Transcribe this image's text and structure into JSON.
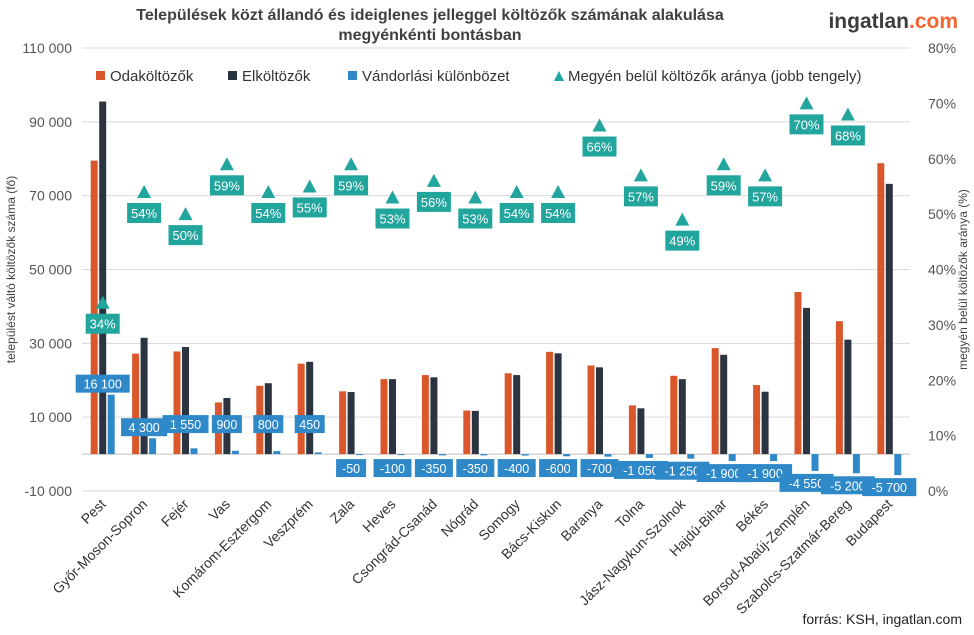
{
  "header": {
    "title_line1": "Települések közt állandó és ideiglenes jelleggel költözők számának alakulása",
    "title_line2": "megyénkénti bontásban",
    "brand_main": "ingatlan",
    "brand_suffix": ".com"
  },
  "footer": {
    "source": "forrás: KSH, ingatlan.com"
  },
  "colors": {
    "odakoltozok": "#d9572b",
    "elkoltozok": "#2c3441",
    "vandorlasi": "#2f89c9",
    "arany": "#22a59d",
    "grid": "#d9d9d9",
    "axis_text": "#555555"
  },
  "chart_data": {
    "type": "bar",
    "title": "Települések közt állandó és ideiglenes jelleggel költözők számának alakulása megyénkénti bontásban",
    "ylabel": "települést váltó költözők száma (fő)",
    "ylabel_right": "megyén belül költözők aránya (%)",
    "ylim": [
      -10000,
      110000
    ],
    "ylim_right": [
      0,
      80
    ],
    "yticks": [
      -10000,
      10000,
      30000,
      50000,
      70000,
      90000,
      110000
    ],
    "yticks_labels": [
      "-10 000",
      "10 000",
      "30 000",
      "50 000",
      "70 000",
      "90 000",
      "110 000"
    ],
    "yticks_right": [
      0,
      10,
      20,
      30,
      40,
      50,
      60,
      70,
      80
    ],
    "yticks_right_labels": [
      "0%",
      "10%",
      "20%",
      "30%",
      "40%",
      "50%",
      "60%",
      "70%",
      "80%"
    ],
    "categories": [
      "Pest",
      "Győr-Moson-Sopron",
      "Fejér",
      "Vas",
      "Komárom-Esztergom",
      "Veszprém",
      "Zala",
      "Heves",
      "Csongrád-Csanád",
      "Nógrád",
      "Somogy",
      "Bács-Kiskun",
      "Baranya",
      "Tolna",
      "Jász-Nagykun-Szolnok",
      "Hajdú-Bihar",
      "Békés",
      "Borsod-Abaúj-Zemplén",
      "Szabolcs-Szatmár-Bereg",
      "Budapest"
    ],
    "series": [
      {
        "name": "Odaköltözők",
        "axis": "left",
        "values": [
          79500,
          27200,
          27800,
          14000,
          18500,
          24500,
          17000,
          20300,
          21400,
          11800,
          21900,
          27700,
          24000,
          13200,
          21200,
          28700,
          18700,
          43900,
          36000,
          78800
        ]
      },
      {
        "name": "Elköltözők",
        "axis": "left",
        "values": [
          95500,
          31500,
          29000,
          15200,
          19200,
          25000,
          16800,
          20300,
          20800,
          11700,
          21400,
          27300,
          23500,
          12400,
          20300,
          26900,
          16900,
          39600,
          31000,
          73200
        ]
      },
      {
        "name": "Vándorlási különbözet",
        "axis": "left",
        "values": [
          16100,
          4300,
          1550,
          900,
          800,
          450,
          -50,
          -100,
          -350,
          -350,
          -400,
          -600,
          -700,
          -1050,
          -1250,
          -1900,
          -1900,
          -4550,
          -5200,
          -5700
        ],
        "labels": [
          "16 100",
          "4 300",
          "1 550",
          "900",
          "800",
          "450",
          "-50",
          "-100",
          "-350",
          "-350",
          "-400",
          "-600",
          "-700",
          "-1 050",
          "-1 250",
          "-1 900",
          "-1 900",
          "-4 550",
          "-5 200",
          "-5 700"
        ]
      },
      {
        "name": "Megyén belül költözők aránya (jobb tengely)",
        "axis": "right",
        "type": "scatter",
        "values": [
          34,
          54,
          50,
          59,
          54,
          55,
          59,
          53,
          56,
          53,
          54,
          54,
          66,
          57,
          49,
          59,
          57,
          70,
          68,
          null
        ],
        "labels": [
          "34%",
          "54%",
          "50%",
          "59%",
          "54%",
          "55%",
          "59%",
          "53%",
          "56%",
          "53%",
          "54%",
          "54%",
          "66%",
          "57%",
          "49%",
          "59%",
          "57%",
          "70%",
          "68%",
          null
        ]
      }
    ]
  }
}
